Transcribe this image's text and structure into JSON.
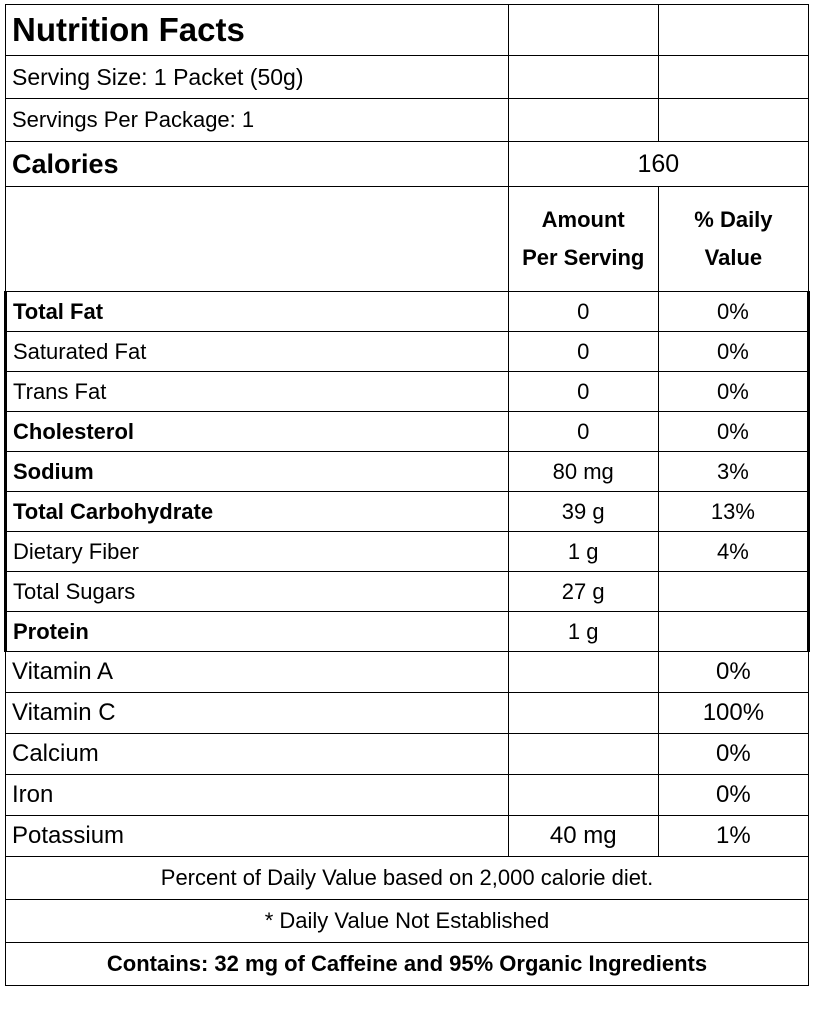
{
  "title": "Nutrition Facts",
  "serving_size": "Serving Size: 1 Packet (50g)",
  "servings_per_package": "Servings Per Package: 1",
  "calories": {
    "label": "Calories",
    "value": "160"
  },
  "headers": {
    "amount_line1": "Amount",
    "amount_line2": "Per Serving",
    "dv_line1": "% Daily",
    "dv_line2": "Value"
  },
  "nutrients": [
    {
      "name": "Total Fat",
      "amount": "0",
      "dv": "0%"
    },
    {
      "name": "Saturated Fat",
      "amount": "0",
      "dv": "0%"
    },
    {
      "name": "Trans Fat",
      "amount": "0",
      "dv": "0%"
    },
    {
      "name": "Cholesterol",
      "amount": "0",
      "dv": "0%"
    },
    {
      "name": "Sodium",
      "amount": "80 mg",
      "dv": "3%"
    },
    {
      "name": "Total Carbohydrate",
      "amount": "39 g",
      "dv": "13%"
    },
    {
      "name": "Dietary Fiber",
      "amount": "1 g",
      "dv": "4%"
    },
    {
      "name": "Total Sugars",
      "amount": "27 g",
      "dv": ""
    },
    {
      "name": "Protein",
      "amount": "1 g",
      "dv": ""
    }
  ],
  "vitamins": [
    {
      "name": "Vitamin A",
      "amount": "",
      "dv": "0%"
    },
    {
      "name": "Vitamin C",
      "amount": "",
      "dv": "100%"
    },
    {
      "name": "Calcium",
      "amount": "",
      "dv": "0%"
    },
    {
      "name": "Iron",
      "amount": "",
      "dv": "0%"
    },
    {
      "name": "Potassium",
      "amount": "40 mg",
      "dv": "1%"
    }
  ],
  "footnotes": {
    "daily_value_basis": "Percent of Daily Value based on 2,000 calorie diet.",
    "not_established": "* Daily Value Not Established",
    "contains": "Contains: 32 mg of Caffeine and 95% Organic Ingredients"
  }
}
